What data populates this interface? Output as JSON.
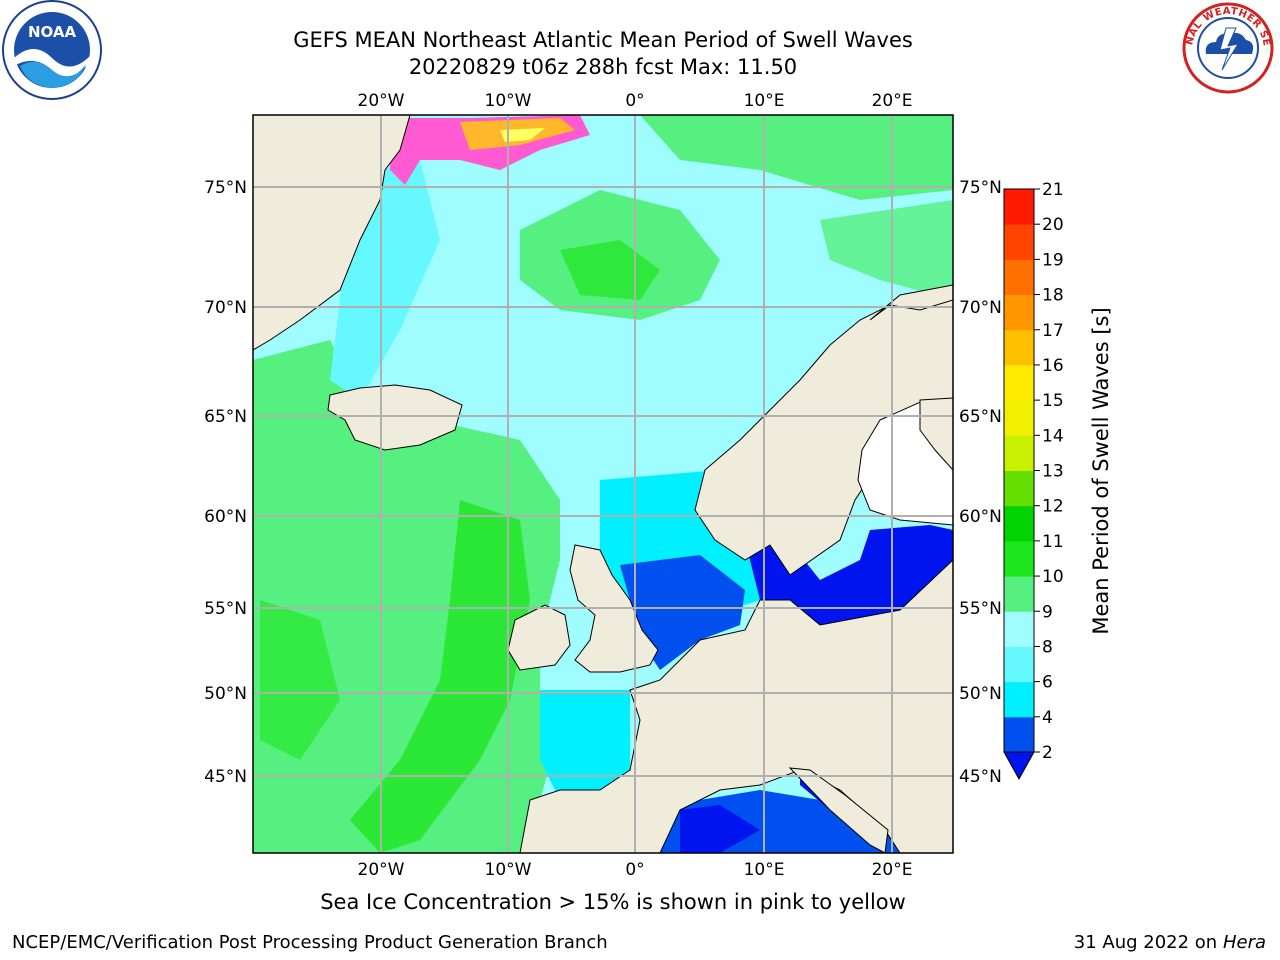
{
  "title": {
    "line1": "GEFS MEAN Northeast Atlantic Mean Period of Swell Waves",
    "line2": "20220829 t06z 288h fcst   Max: 11.50"
  },
  "logos": {
    "left": {
      "icon": "noaa-logo-icon",
      "text": "NOAA"
    },
    "right": {
      "icon": "nws-logo-icon",
      "text": "NATIONAL WEATHER SERVICE"
    }
  },
  "map": {
    "lon_ticks": [
      "20°W",
      "10°W",
      "0°",
      "10°E",
      "20°E"
    ],
    "lat_ticks": [
      "75°N",
      "70°N",
      "65°N",
      "60°N",
      "55°N",
      "50°N",
      "45°N"
    ],
    "land_color": "#efecdc",
    "grid_color": "#b0b0b0"
  },
  "colorbar": {
    "label": "Mean Period of Swell Waves [s]",
    "ticks": [
      "2",
      "4",
      "6",
      "8",
      "9",
      "10",
      "11",
      "12",
      "13",
      "14",
      "15",
      "16",
      "17",
      "18",
      "19",
      "20",
      "21"
    ],
    "colors": [
      "#0050f0",
      "#00b4ff",
      "#00f0ff",
      "#66f8ff",
      "#9ffcff",
      "#55f080",
      "#1ee61e",
      "#00d400",
      "#64e000",
      "#c8f000",
      "#f0f000",
      "#ffea00",
      "#ffc000",
      "#ff9600",
      "#ff7000",
      "#ff4400",
      "#ff1a00"
    ],
    "under_color": "#0014f0"
  },
  "footer": {
    "note": "Sea Ice Concentration > 15% is shown in pink to yellow",
    "credit": "NCEP/EMC/Verification Post Processing Product Generation Branch",
    "date": "31 Aug 2022 on",
    "system": "Hera"
  }
}
